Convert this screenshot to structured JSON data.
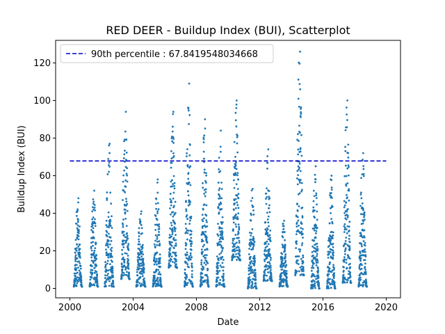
{
  "chart_data": {
    "type": "scatter",
    "title": "RED DEER - Buildup Index (BUI), Scatterplot",
    "xlabel": "Date",
    "ylabel": "Buildup Index (BUI)",
    "xlim": [
      2000,
      2020
    ],
    "ylim": [
      -5,
      132
    ],
    "xticks": [
      "2000",
      "2004",
      "2008",
      "2012",
      "2016",
      "2020"
    ],
    "yticks": [
      "0",
      "20",
      "40",
      "60",
      "80",
      "100",
      "120"
    ],
    "point_color": "#1f77b4",
    "legend": {
      "placement": "upper-left",
      "label": "90th percentile : 67.8419548034668"
    },
    "reference_line": {
      "y": 67.8419548034668,
      "x_start": 2000,
      "x_end": 2020,
      "color": "#0000cc",
      "style": "dashed"
    },
    "series": [
      {
        "seasons": [
          {
            "year": 2000,
            "start": 2000.25,
            "end": 2000.78,
            "peak": 48,
            "base": 1
          },
          {
            "year": 2001,
            "start": 2001.25,
            "end": 2001.78,
            "peak": 52,
            "base": 1
          },
          {
            "year": 2002,
            "start": 2002.2,
            "end": 2002.78,
            "peak": 77,
            "base": 1
          },
          {
            "year": 2003,
            "start": 2003.25,
            "end": 2003.78,
            "peak": 94,
            "base": 5
          },
          {
            "year": 2004,
            "start": 2004.2,
            "end": 2004.78,
            "peak": 41,
            "base": 1
          },
          {
            "year": 2005,
            "start": 2005.25,
            "end": 2005.8,
            "peak": 58,
            "base": 1
          },
          {
            "year": 2006,
            "start": 2006.25,
            "end": 2006.78,
            "peak": 94,
            "base": 11
          },
          {
            "year": 2007,
            "start": 2007.25,
            "end": 2007.78,
            "peak": 109,
            "base": 1
          },
          {
            "year": 2008,
            "start": 2008.25,
            "end": 2008.78,
            "peak": 90,
            "base": 1
          },
          {
            "year": 2009,
            "start": 2009.25,
            "end": 2009.78,
            "peak": 84,
            "base": 1
          },
          {
            "year": 2010,
            "start": 2010.25,
            "end": 2010.78,
            "peak": 100,
            "base": 15
          },
          {
            "year": 2011,
            "start": 2011.25,
            "end": 2011.8,
            "peak": 53,
            "base": 0
          },
          {
            "year": 2012,
            "start": 2012.25,
            "end": 2012.78,
            "peak": 74,
            "base": 4
          },
          {
            "year": 2013,
            "start": 2013.25,
            "end": 2013.78,
            "peak": 36,
            "base": 1
          },
          {
            "year": 2014,
            "start": 2014.25,
            "end": 2014.8,
            "peak": 126,
            "base": 7
          },
          {
            "year": 2015,
            "start": 2015.25,
            "end": 2015.78,
            "peak": 65,
            "base": 0
          },
          {
            "year": 2016,
            "start": 2016.25,
            "end": 2016.78,
            "peak": 60,
            "base": 0
          },
          {
            "year": 2017,
            "start": 2017.25,
            "end": 2017.78,
            "peak": 100,
            "base": 3
          },
          {
            "year": 2018,
            "start": 2018.25,
            "end": 2018.78,
            "peak": 72,
            "base": 1
          }
        ]
      }
    ]
  }
}
